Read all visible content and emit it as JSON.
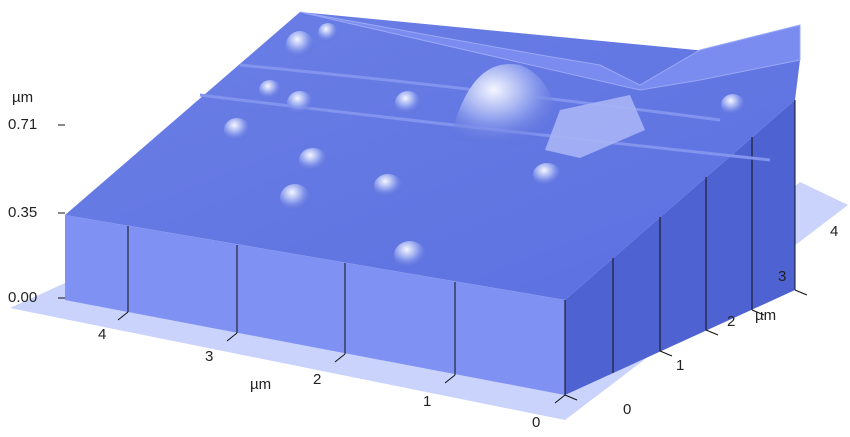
{
  "z_axis": {
    "unit": "µm",
    "ticks": [
      "0.71",
      "0.35",
      "0.00"
    ]
  },
  "x_axis": {
    "unit": "µm",
    "ticks": [
      "4",
      "3",
      "2",
      "1",
      "0"
    ]
  },
  "y_axis": {
    "unit": "µm",
    "ticks": [
      "0",
      "1",
      "2",
      "3",
      "4"
    ]
  }
}
